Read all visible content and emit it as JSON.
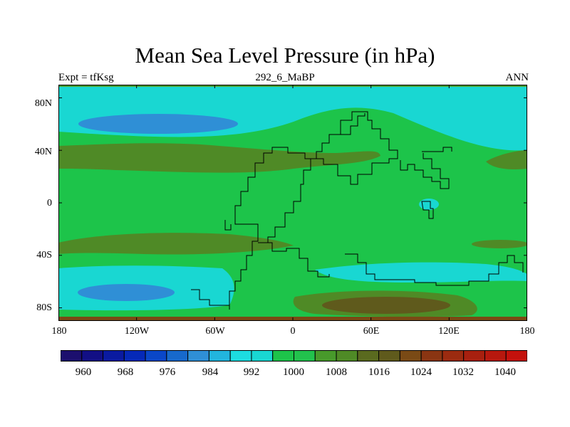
{
  "figure": {
    "title": "Mean Sea Level Pressure (in hPa)",
    "left_string": "Expt = tfKsg",
    "center_string": "292_6_MaBP",
    "right_string": "ANN"
  },
  "axes": {
    "lat_labels": [
      "80N",
      "40N",
      "0",
      "40S",
      "80S"
    ],
    "lat_values": [
      80,
      40,
      0,
      -40,
      -80
    ],
    "lon_labels": [
      "180",
      "120W",
      "60W",
      "0",
      "60E",
      "120E",
      "180"
    ],
    "lon_values": [
      -180,
      -120,
      -60,
      0,
      60,
      120,
      180
    ],
    "lat_range": [
      -90,
      90
    ],
    "lon_range": [
      -180,
      180
    ]
  },
  "colorbar": {
    "colors": [
      "#1c0f6e",
      "#120f85",
      "#0a1aa0",
      "#0529b8",
      "#0a47c8",
      "#1769cc",
      "#2f8fd6",
      "#22b5dd",
      "#1ddce0",
      "#19d7d2",
      "#1dc44a",
      "#22c24d",
      "#489a2b",
      "#4f8a26",
      "#5a6a1f",
      "#5f5a1c",
      "#7a4a15",
      "#8a3512",
      "#9b2b10",
      "#a8200f",
      "#b7180e",
      "#c4110c"
    ],
    "labels": [
      "960",
      "968",
      "976",
      "984",
      "992",
      "1000",
      "1008",
      "1016",
      "1024",
      "1032",
      "1040"
    ],
    "label_values": [
      960,
      968,
      976,
      984,
      992,
      1000,
      1008,
      1016,
      1024,
      1032,
      1040
    ]
  }
}
